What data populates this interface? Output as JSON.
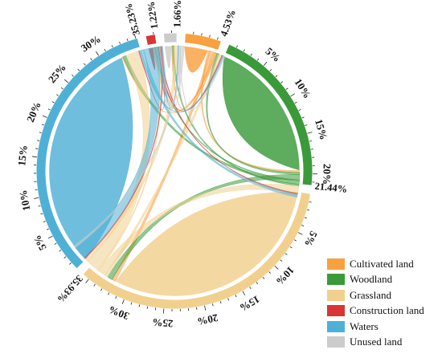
{
  "chart_data": {
    "type": "chord",
    "categories": [
      "Cultivated land",
      "Woodland",
      "Grassland",
      "Construction land",
      "Waters",
      "Unused land"
    ],
    "colors": [
      "#f9a03f",
      "#3a9a3a",
      "#f1d08e",
      "#d93535",
      "#4fb0d6",
      "#cccccc"
    ],
    "totals_percent": [
      4.53,
      21.44,
      35.93,
      1.22,
      35.23,
      1.66
    ],
    "total_labels": [
      "4.53%",
      "21.44%",
      "35.93%",
      "1.22%",
      "35.23%",
      "1.66%"
    ],
    "tick_labels": [
      "5%",
      "10%",
      "15%",
      "20%",
      "25%",
      "30%"
    ],
    "flows": [
      {
        "from": "Cultivated land",
        "to": "Cultivated land",
        "value": 3.3
      },
      {
        "from": "Cultivated land",
        "to": "Woodland",
        "value": 0.25
      },
      {
        "from": "Cultivated land",
        "to": "Grassland",
        "value": 0.5
      },
      {
        "from": "Cultivated land",
        "to": "Construction land",
        "value": 0.2
      },
      {
        "from": "Cultivated land",
        "to": "Waters",
        "value": 0.15
      },
      {
        "from": "Cultivated land",
        "to": "Unused land",
        "value": 0.13
      },
      {
        "from": "Woodland",
        "to": "Woodland",
        "value": 19.6
      },
      {
        "from": "Woodland",
        "to": "Cultivated land",
        "value": 0.3
      },
      {
        "from": "Woodland",
        "to": "Grassland",
        "value": 0.7
      },
      {
        "from": "Woodland",
        "to": "Construction land",
        "value": 0.15
      },
      {
        "from": "Woodland",
        "to": "Waters",
        "value": 0.45
      },
      {
        "from": "Woodland",
        "to": "Unused land",
        "value": 0.24
      },
      {
        "from": "Grassland",
        "to": "Grassland",
        "value": 32.0
      },
      {
        "from": "Grassland",
        "to": "Cultivated land",
        "value": 0.4
      },
      {
        "from": "Grassland",
        "to": "Woodland",
        "value": 1.0
      },
      {
        "from": "Grassland",
        "to": "Construction land",
        "value": 0.25
      },
      {
        "from": "Grassland",
        "to": "Waters",
        "value": 1.8
      },
      {
        "from": "Grassland",
        "to": "Unused land",
        "value": 0.48
      },
      {
        "from": "Construction land",
        "to": "Construction land",
        "value": 0.7
      },
      {
        "from": "Construction land",
        "to": "Cultivated land",
        "value": 0.15
      },
      {
        "from": "Construction land",
        "to": "Woodland",
        "value": 0.12
      },
      {
        "from": "Construction land",
        "to": "Grassland",
        "value": 0.15
      },
      {
        "from": "Construction land",
        "to": "Waters",
        "value": 0.1
      },
      {
        "from": "Waters",
        "to": "Waters",
        "value": 32.5
      },
      {
        "from": "Waters",
        "to": "Cultivated land",
        "value": 0.2
      },
      {
        "from": "Waters",
        "to": "Woodland",
        "value": 0.4
      },
      {
        "from": "Waters",
        "to": "Grassland",
        "value": 1.8
      },
      {
        "from": "Waters",
        "to": "Construction land",
        "value": 0.15
      },
      {
        "from": "Waters",
        "to": "Unused land",
        "value": 0.18
      },
      {
        "from": "Unused land",
        "to": "Unused land",
        "value": 0.95
      },
      {
        "from": "Unused land",
        "to": "Cultivated land",
        "value": 0.15
      },
      {
        "from": "Unused land",
        "to": "Woodland",
        "value": 0.1
      },
      {
        "from": "Unused land",
        "to": "Grassland",
        "value": 0.3
      },
      {
        "from": "Unused land",
        "to": "Waters",
        "value": 0.16
      }
    ],
    "legend_position": "bottom-right"
  },
  "legend": {
    "items": [
      {
        "label": "Cultivated land",
        "color": "#f9a03f"
      },
      {
        "label": "Woodland",
        "color": "#3a9a3a"
      },
      {
        "label": "Grassland",
        "color": "#f1d08e"
      },
      {
        "label": "Construction land",
        "color": "#d93535"
      },
      {
        "label": "Waters",
        "color": "#4fb0d6"
      },
      {
        "label": "Unused land",
        "color": "#cccccc"
      }
    ]
  }
}
